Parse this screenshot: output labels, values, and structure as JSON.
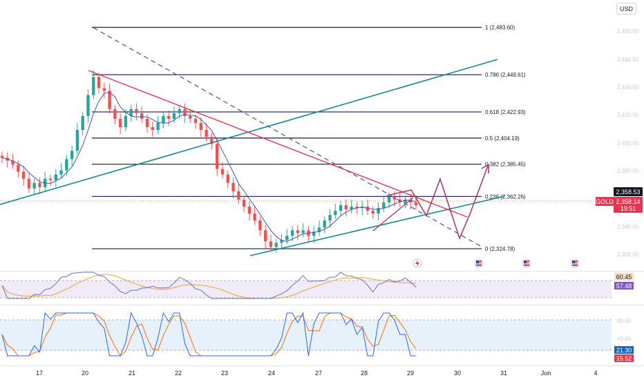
{
  "currency_button": "USD",
  "symbol_tag": "GOLD",
  "countdown": "19:51",
  "colors": {
    "up": "#26a69a",
    "down": "#ef5350",
    "fib": "#2a2e60",
    "teal": "#12898b",
    "red": "#e8344e",
    "projection": "#a73a67",
    "dashed": "#4a4f8c",
    "rsi": "#6b6fc4",
    "rsi_ma": "#e6a23c",
    "stoch_k": "#2962ff",
    "stoch_d": "#ff6d00"
  },
  "chart_data": {
    "type": "candlestick",
    "x_ticks": [
      "17",
      "20",
      "21",
      "22",
      "23",
      "24",
      "27",
      "28",
      "29",
      "30",
      "31",
      "Jun",
      "4"
    ],
    "y_ticks": [
      "2,480.00",
      "2,460.00",
      "2,440.00",
      "2,420.00",
      "2,400.00",
      "2,380.00",
      "2,340.00",
      "2,320.00"
    ],
    "ylim": [
      2314,
      2490
    ],
    "fibonacci": [
      {
        "label": "1 (2,483.60)",
        "value": 2483.6
      },
      {
        "label": "0.786 (2,449.61)",
        "value": 2449.61
      },
      {
        "label": "0.618 (2,422.93)",
        "value": 2422.93
      },
      {
        "label": "0.5 (2,404.19)",
        "value": 2404.19
      },
      {
        "label": "0.382 (2,385.45)",
        "value": 2385.45
      },
      {
        "label": "0.236 (2,362.26)",
        "value": 2362.26
      },
      {
        "label": "0 (2,324.78)",
        "value": 2324.78
      }
    ],
    "last_price": "2,358.14",
    "price_tag_upper": "2,358.53",
    "closes": [
      2390,
      2388,
      2385,
      2380,
      2375,
      2368,
      2372,
      2369,
      2375,
      2374,
      2378,
      2381,
      2389,
      2395,
      2410,
      2420,
      2435,
      2448,
      2440,
      2438,
      2425,
      2418,
      2412,
      2420,
      2425,
      2422,
      2418,
      2412,
      2410,
      2415,
      2420,
      2418,
      2422,
      2425,
      2420,
      2418,
      2415,
      2410,
      2405,
      2400,
      2382,
      2378,
      2372,
      2366,
      2360,
      2355,
      2350,
      2345,
      2338,
      2330,
      2326,
      2329,
      2331,
      2334,
      2338,
      2336,
      2338,
      2334,
      2337,
      2340,
      2345,
      2349,
      2352,
      2356,
      2353,
      2355,
      2354,
      2355,
      2352,
      2350,
      2354,
      2358,
      2362,
      2360,
      2358,
      2360,
      2358,
      2356
    ],
    "rsi": {
      "labels": [
        "60.45",
        "57.48"
      ]
    },
    "stochastic": {
      "labels": [
        "80.00",
        "40.00",
        "21.30",
        "15.52"
      ]
    }
  }
}
